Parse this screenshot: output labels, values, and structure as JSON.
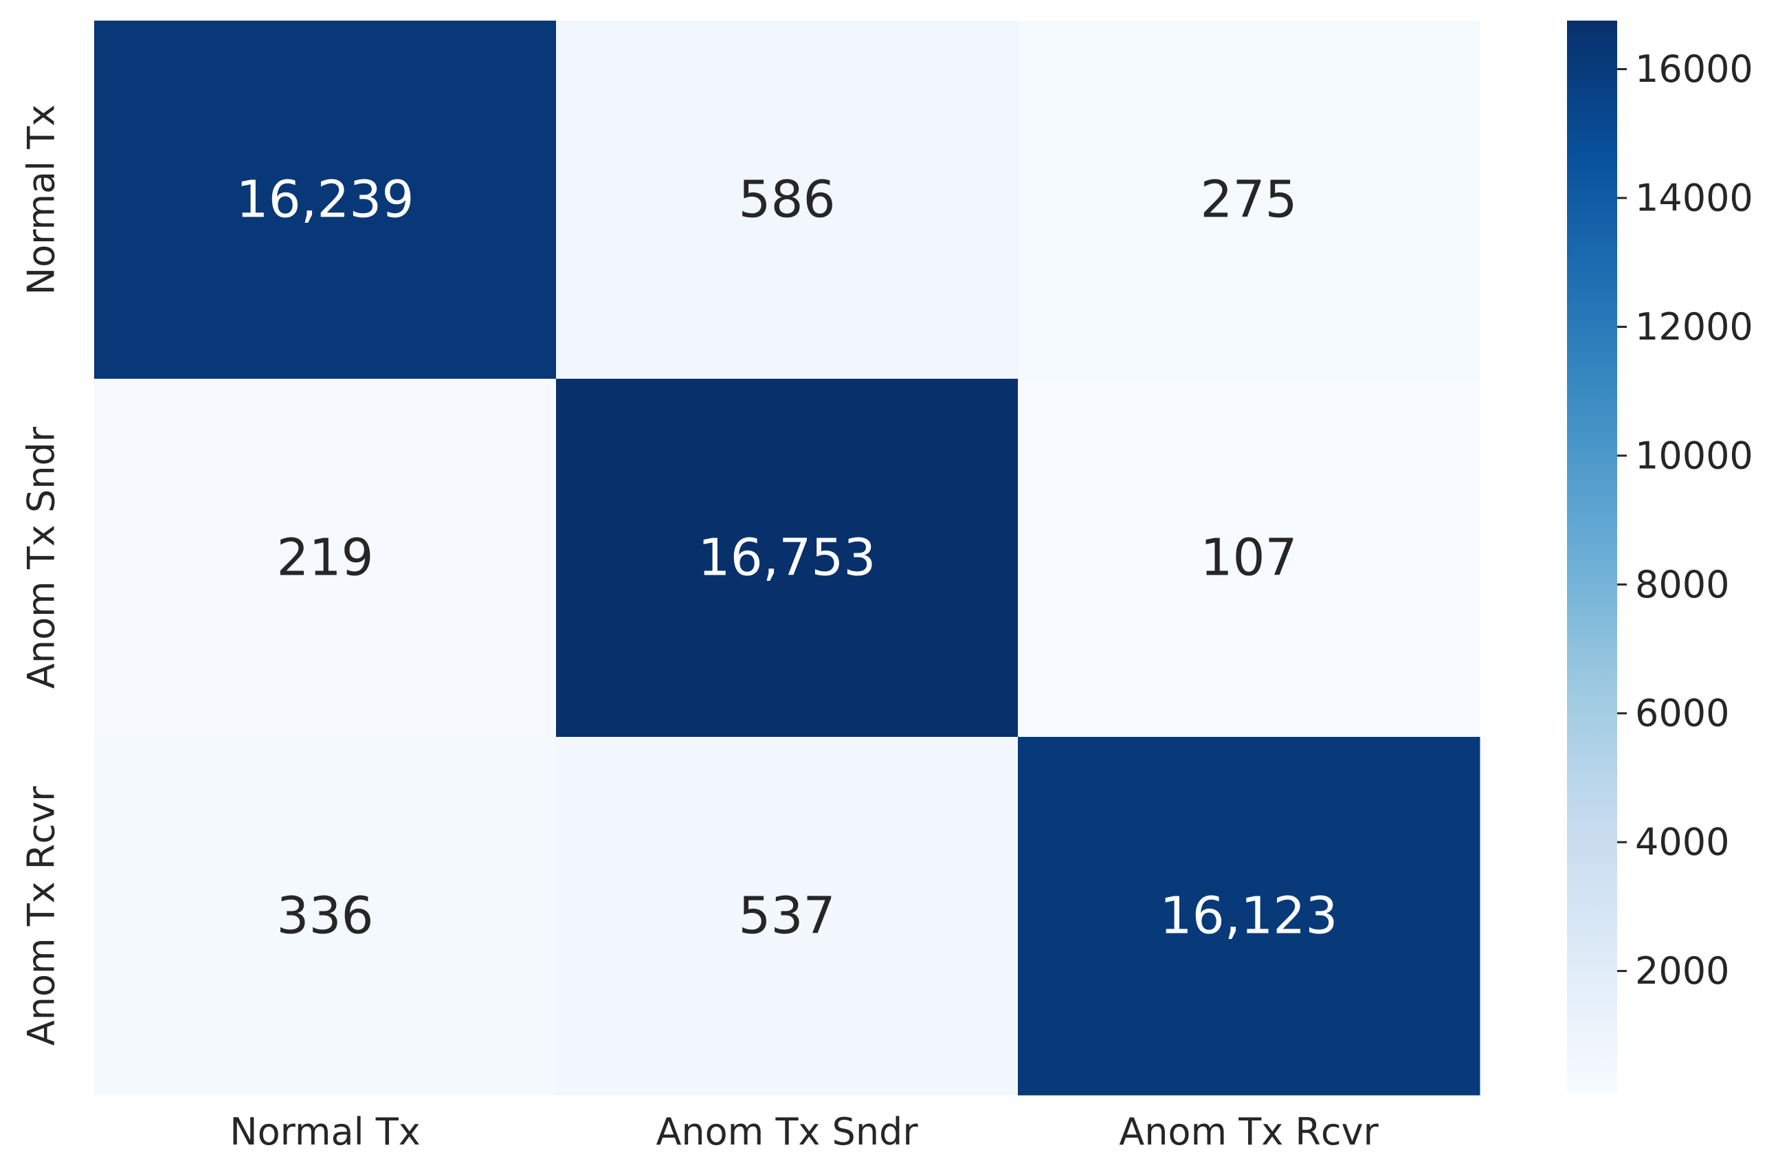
{
  "chart_data": {
    "type": "heatmap",
    "title": "",
    "xlabel": "",
    "ylabel": "",
    "x_categories": [
      "Normal Tx",
      "Anom Tx Sndr",
      "Anom Tx Rcvr"
    ],
    "y_categories": [
      "Normal Tx",
      "Anom Tx Sndr",
      "Anom Tx Rcvr"
    ],
    "values": [
      [
        16239,
        586,
        275
      ],
      [
        219,
        16753,
        107
      ],
      [
        336,
        537,
        16123
      ]
    ],
    "cell_labels": [
      [
        "16,239",
        "586",
        "275"
      ],
      [
        "219",
        "16,753",
        "107"
      ],
      [
        "336",
        "537",
        "16,123"
      ]
    ],
    "colorbar": {
      "colormap": "Blues",
      "range": [
        107,
        16753
      ],
      "ticks": [
        2000,
        4000,
        6000,
        8000,
        10000,
        12000,
        14000,
        16000
      ],
      "tick_labels": [
        "2000",
        "4000",
        "6000",
        "8000",
        "10000",
        "12000",
        "14000",
        "16000"
      ]
    },
    "colors": {
      "low": "#f7fbff",
      "high": "#08306b",
      "dark_text": "#262626",
      "light_text": "#ffffff"
    }
  }
}
